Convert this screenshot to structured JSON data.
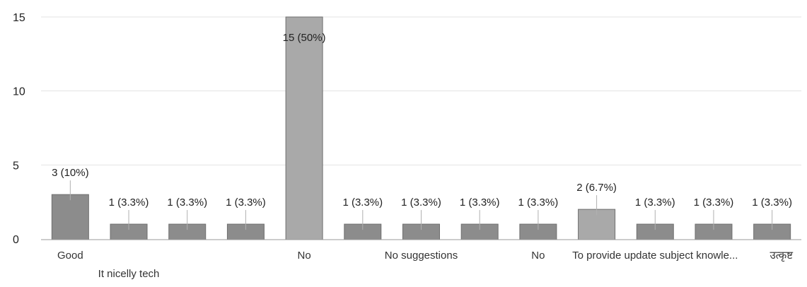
{
  "chart_data": {
    "type": "bar",
    "title": "",
    "xlabel": "",
    "ylabel": "",
    "ylim": [
      0,
      15
    ],
    "y_ticks": [
      0,
      5,
      10,
      15
    ],
    "grid": true,
    "legend": "none",
    "categories": [
      "Good",
      "It nicelly tech",
      "",
      "",
      "No",
      "",
      "No suggestions",
      "",
      "No",
      "",
      "To provide update subject knowle...",
      "",
      "उत्कृष्ट"
    ],
    "values": [
      3,
      1,
      1,
      1,
      15,
      1,
      1,
      1,
      1,
      2,
      1,
      1,
      1
    ],
    "data_labels": [
      "3 (10%)",
      "1 (3.3%)",
      "1 (3.3%)",
      "1 (3.3%)",
      "15 (50%)",
      "1 (3.3%)",
      "1 (3.3%)",
      "1 (3.3%)",
      "1 (3.3%)",
      "2 (6.7%)",
      "1 (3.3%)",
      "1 (3.3%)",
      "1 (3.3%)"
    ],
    "colors": {
      "bar": "#8c8c8c",
      "bar_highlight": "#a9a9a9",
      "bar_stroke": "#6f6f6f",
      "gridline": "#e3e3e3",
      "axis": "#9a9a9a",
      "text": "#222222"
    }
  }
}
